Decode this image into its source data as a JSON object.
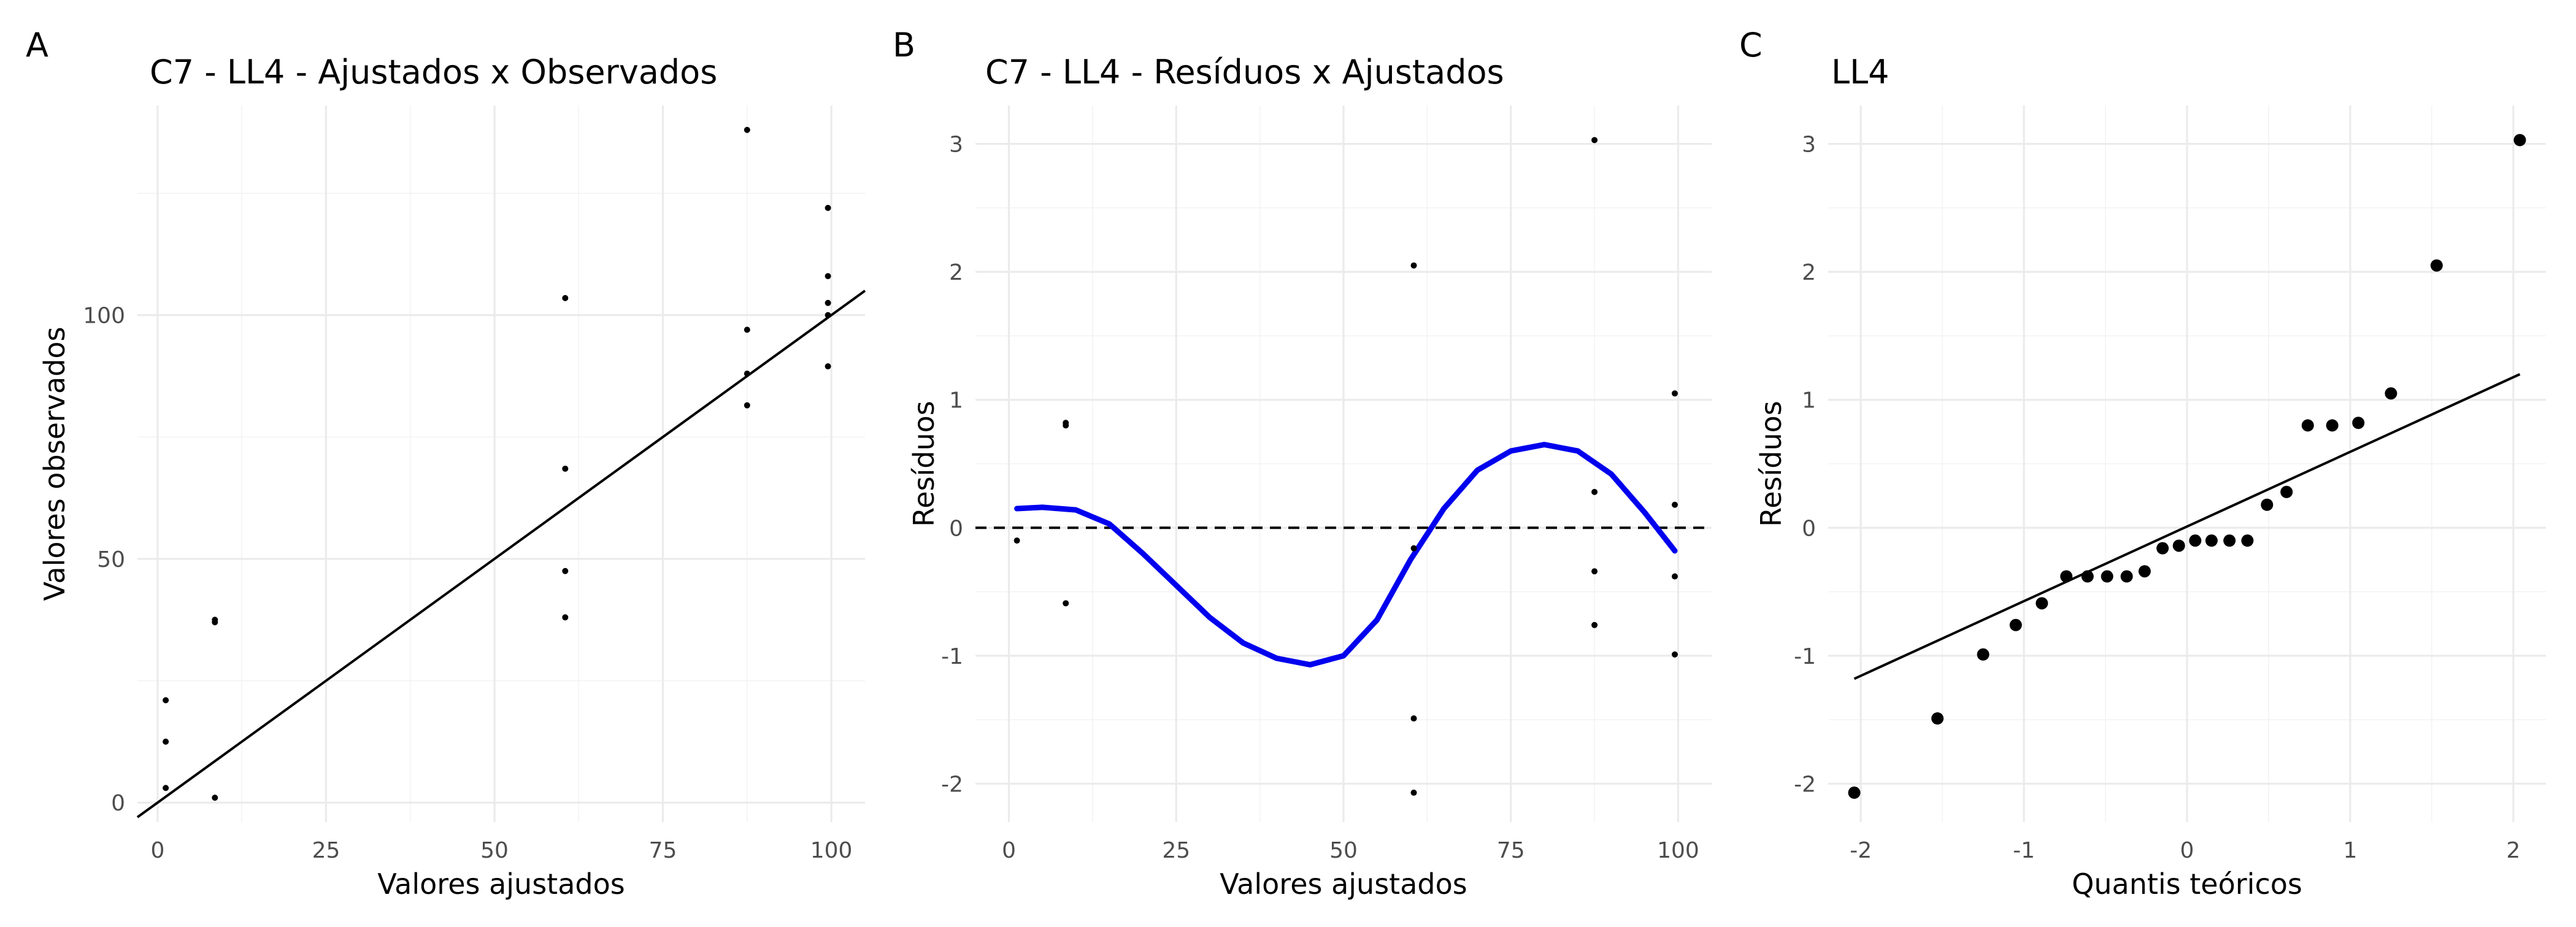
{
  "chart_data": [
    {
      "type": "scatter",
      "tag": "A",
      "title": "C7 - LL4 - Ajustados x Observados",
      "xlabel": "Valores ajustados",
      "ylabel": "Valores observados",
      "xlim": [
        -3,
        105
      ],
      "ylim": [
        -4,
        143
      ],
      "xticks": [
        0,
        25,
        50,
        75,
        100
      ],
      "yticks": [
        0,
        50,
        100
      ],
      "xtick_labels": [
        "0",
        "25",
        "50",
        "75",
        "100"
      ],
      "ytick_labels": [
        "0",
        "50",
        "100"
      ],
      "grid": true,
      "points": [
        {
          "x": 1.2,
          "y": 21
        },
        {
          "x": 1.2,
          "y": 12.5
        },
        {
          "x": 1.2,
          "y": 3
        },
        {
          "x": 8.5,
          "y": 37.5
        },
        {
          "x": 8.5,
          "y": 37
        },
        {
          "x": 8.5,
          "y": 1
        },
        {
          "x": 60.5,
          "y": 103.5
        },
        {
          "x": 60.5,
          "y": 68.5
        },
        {
          "x": 60.5,
          "y": 47.5
        },
        {
          "x": 60.5,
          "y": 38
        },
        {
          "x": 87.5,
          "y": 138
        },
        {
          "x": 87.5,
          "y": 97
        },
        {
          "x": 87.5,
          "y": 88
        },
        {
          "x": 87.5,
          "y": 81.5
        },
        {
          "x": 99.5,
          "y": 122
        },
        {
          "x": 99.5,
          "y": 108
        },
        {
          "x": 99.5,
          "y": 102.5
        },
        {
          "x": 99.5,
          "y": 100
        },
        {
          "x": 99.5,
          "y": 89.5
        }
      ],
      "reference_line": {
        "x": [
          -3,
          105
        ],
        "y": [
          -3,
          105
        ]
      }
    },
    {
      "type": "scatter",
      "tag": "B",
      "title": "C7 - LL4 - Resíduos x Ajustados",
      "xlabel": "Valores ajustados",
      "ylabel": "Resíduos",
      "xlim": [
        -5,
        105
      ],
      "ylim": [
        -2.3,
        3.3
      ],
      "xticks": [
        0,
        25,
        50,
        75,
        100
      ],
      "yticks": [
        -2,
        -1,
        0,
        1,
        2,
        3
      ],
      "xtick_labels": [
        "0",
        "25",
        "50",
        "75",
        "100"
      ],
      "ytick_labels": [
        "-2",
        "-1",
        "0",
        "1",
        "2",
        "3"
      ],
      "grid": true,
      "points": [
        {
          "x": 1.2,
          "y": -0.1
        },
        {
          "x": 8.5,
          "y": 0.82
        },
        {
          "x": 8.5,
          "y": 0.8
        },
        {
          "x": 8.5,
          "y": -0.59
        },
        {
          "x": 60.5,
          "y": 2.05
        },
        {
          "x": 60.5,
          "y": -0.16
        },
        {
          "x": 60.5,
          "y": -1.49
        },
        {
          "x": 60.5,
          "y": -2.07
        },
        {
          "x": 87.5,
          "y": 3.03
        },
        {
          "x": 87.5,
          "y": 0.28
        },
        {
          "x": 87.5,
          "y": -0.34
        },
        {
          "x": 87.5,
          "y": -0.76
        },
        {
          "x": 99.5,
          "y": 1.05
        },
        {
          "x": 99.5,
          "y": 0.18
        },
        {
          "x": 99.5,
          "y": -0.38
        },
        {
          "x": 99.5,
          "y": -0.99
        }
      ],
      "hline": 0,
      "smooth": {
        "color": "#0000ee",
        "x": [
          1.2,
          5,
          10,
          15,
          20,
          25,
          30,
          35,
          40,
          45,
          50,
          55,
          60,
          65,
          70,
          75,
          80,
          85,
          90,
          95,
          99.5
        ],
        "y": [
          0.15,
          0.16,
          0.14,
          0.03,
          -0.2,
          -0.45,
          -0.7,
          -0.9,
          -1.02,
          -1.07,
          -1.0,
          -0.72,
          -0.25,
          0.15,
          0.45,
          0.6,
          0.65,
          0.6,
          0.42,
          0.12,
          -0.18
        ]
      }
    },
    {
      "type": "scatter",
      "tag": "C",
      "title": "LL4",
      "xlabel": "Quantis teóricos",
      "ylabel": "Resíduos",
      "xlim": [
        -2.2,
        2.2
      ],
      "ylim": [
        -2.3,
        3.3
      ],
      "xticks": [
        -2,
        -1,
        0,
        1,
        2
      ],
      "yticks": [
        -2,
        -1,
        0,
        1,
        2,
        3
      ],
      "xtick_labels": [
        "-2",
        "-1",
        "0",
        "1",
        "2"
      ],
      "ytick_labels": [
        "-2",
        "-1",
        "0",
        "1",
        "2",
        "3"
      ],
      "grid": true,
      "points": [
        {
          "x": -2.04,
          "y": -2.07
        },
        {
          "x": -1.53,
          "y": -1.49
        },
        {
          "x": -1.25,
          "y": -0.99
        },
        {
          "x": -1.05,
          "y": -0.76
        },
        {
          "x": -0.89,
          "y": -0.59
        },
        {
          "x": -0.74,
          "y": -0.38
        },
        {
          "x": -0.61,
          "y": -0.38
        },
        {
          "x": -0.49,
          "y": -0.38
        },
        {
          "x": -0.37,
          "y": -0.38
        },
        {
          "x": -0.26,
          "y": -0.34
        },
        {
          "x": -0.15,
          "y": -0.16
        },
        {
          "x": -0.05,
          "y": -0.14
        },
        {
          "x": 0.05,
          "y": -0.1
        },
        {
          "x": 0.15,
          "y": -0.1
        },
        {
          "x": 0.26,
          "y": -0.1
        },
        {
          "x": 0.37,
          "y": -0.1
        },
        {
          "x": 0.49,
          "y": 0.18
        },
        {
          "x": 0.61,
          "y": 0.28
        },
        {
          "x": 0.74,
          "y": 0.8
        },
        {
          "x": 0.89,
          "y": 0.8
        },
        {
          "x": 1.05,
          "y": 0.82
        },
        {
          "x": 1.25,
          "y": 1.05
        },
        {
          "x": 1.53,
          "y": 2.05
        },
        {
          "x": 2.04,
          "y": 3.03
        }
      ],
      "reference_line": {
        "x": [
          -2.04,
          2.04
        ],
        "y": [
          -1.18,
          1.2
        ]
      }
    }
  ]
}
